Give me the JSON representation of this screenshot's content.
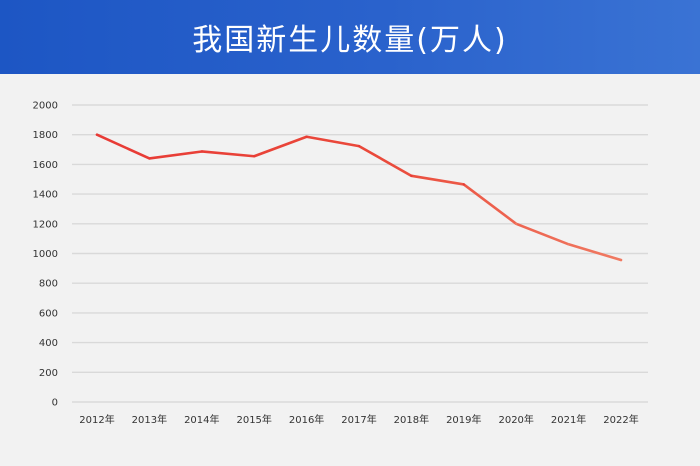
{
  "header": {
    "title": "我国新生儿数量(万人)"
  },
  "colors": {
    "header_bg": "#2a62cc",
    "line_start": "#e83a35",
    "line_end": "#f07a62",
    "grid": "#d9d9d9"
  },
  "chart_data": {
    "type": "line",
    "title": "我国新生儿数量(万人)",
    "xlabel": "",
    "ylabel": "",
    "categories": [
      "2012年",
      "2013年",
      "2014年",
      "2015年",
      "2016年",
      "2017年",
      "2018年",
      "2019年",
      "2020年",
      "2021年",
      "2022年"
    ],
    "series": [
      {
        "values": [
          1800,
          1640,
          1687,
          1655,
          1786,
          1723,
          1523,
          1465,
          1200,
          1062,
          956
        ]
      }
    ],
    "ylim": [
      0,
      2000
    ],
    "yticks": [
      0,
      200,
      400,
      600,
      800,
      1000,
      1200,
      1400,
      1600,
      1800,
      2000
    ],
    "grid": true,
    "legend": "none"
  }
}
